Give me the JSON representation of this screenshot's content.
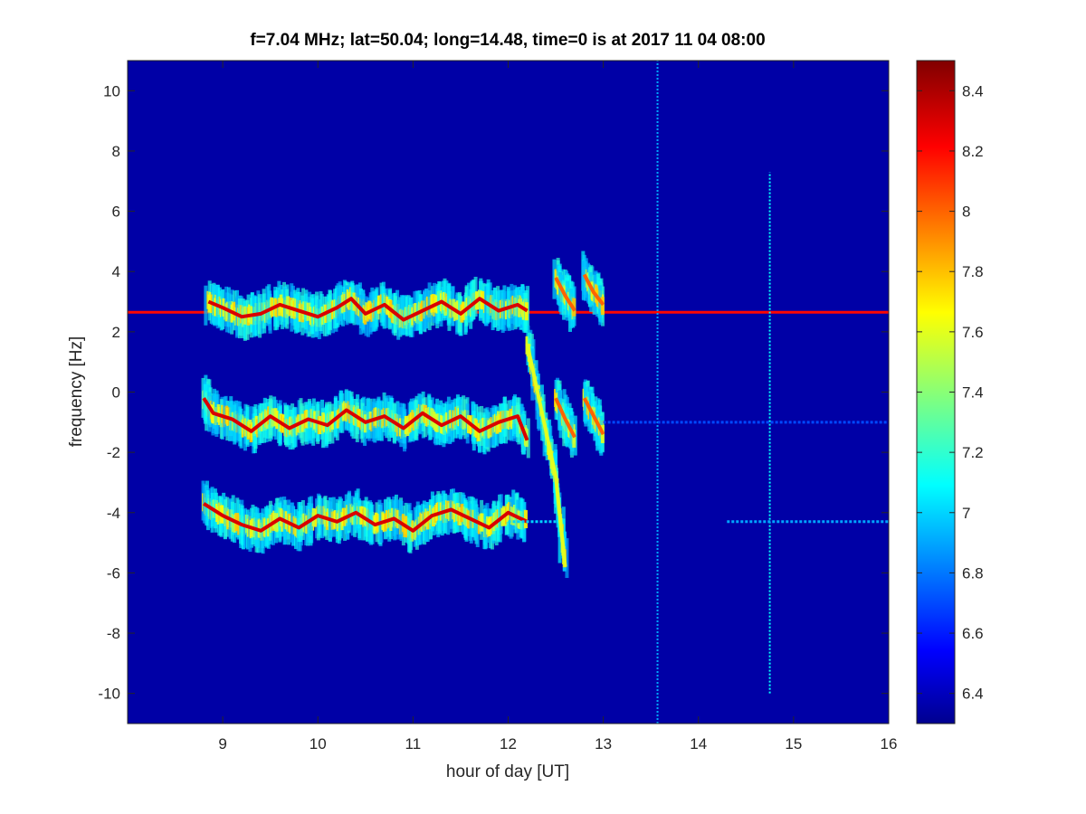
{
  "chart_data": {
    "type": "heatmap",
    "title": "f=7.04 MHz;  lat=50.04; long=14.48, time=0 is at 2017 11 04 08:00",
    "xlabel": "hour of day [UT]",
    "ylabel": "frequency [Hz]",
    "xlim": [
      8.0,
      16.0
    ],
    "ylim": [
      -11,
      11
    ],
    "x_ticks": [
      "9",
      "10",
      "11",
      "12",
      "13",
      "14",
      "15",
      "16"
    ],
    "y_ticks": [
      "10",
      "8",
      "6",
      "4",
      "2",
      "0",
      "-2",
      "-4",
      "-6",
      "-8",
      "-10"
    ],
    "colorbar": {
      "range": [
        6.3,
        8.5
      ],
      "ticks": [
        "8.4",
        "8.2",
        "8",
        "7.8",
        "7.6",
        "7.4",
        "7.2",
        "7",
        "6.8",
        "6.6",
        "6.4"
      ],
      "colormap": "jet"
    },
    "background_level": 6.35,
    "features": [
      {
        "name": "carrier",
        "kind": "horizontal",
        "x": [
          8.0,
          16.0
        ],
        "y": 2.65,
        "level": 8.2
      },
      {
        "name": "trace-upper",
        "kind": "trace",
        "x": [
          8.85,
          9.0,
          9.2,
          9.4,
          9.6,
          9.8,
          10.0,
          10.2,
          10.35,
          10.5,
          10.7,
          10.9,
          11.1,
          11.3,
          11.5,
          11.7,
          11.9,
          12.1,
          12.2
        ],
        "y": [
          3.0,
          2.8,
          2.5,
          2.6,
          2.9,
          2.7,
          2.5,
          2.8,
          3.1,
          2.6,
          2.9,
          2.4,
          2.7,
          3.0,
          2.6,
          3.1,
          2.7,
          2.9,
          2.7
        ],
        "level": 8.3
      },
      {
        "name": "trace-middle",
        "kind": "trace",
        "x": [
          8.8,
          8.9,
          9.1,
          9.3,
          9.5,
          9.7,
          9.9,
          10.1,
          10.3,
          10.5,
          10.7,
          10.9,
          11.1,
          11.3,
          11.5,
          11.7,
          11.9,
          12.1,
          12.2
        ],
        "y": [
          -0.2,
          -0.7,
          -0.9,
          -1.3,
          -0.8,
          -1.2,
          -0.9,
          -1.1,
          -0.6,
          -1.0,
          -0.8,
          -1.2,
          -0.7,
          -1.1,
          -0.8,
          -1.3,
          -1.0,
          -0.8,
          -1.6
        ],
        "level": 8.3
      },
      {
        "name": "trace-lower",
        "kind": "trace",
        "x": [
          8.8,
          9.0,
          9.2,
          9.4,
          9.6,
          9.8,
          10.0,
          10.2,
          10.4,
          10.6,
          10.8,
          11.0,
          11.2,
          11.4,
          11.6,
          11.8,
          12.0,
          12.2
        ],
        "y": [
          -3.7,
          -4.1,
          -4.4,
          -4.6,
          -4.2,
          -4.5,
          -4.1,
          -4.3,
          -4.0,
          -4.4,
          -4.2,
          -4.6,
          -4.1,
          -3.9,
          -4.2,
          -4.5,
          -4.0,
          -4.3
        ],
        "level": 8.3
      },
      {
        "name": "descending-streak-1",
        "kind": "trace",
        "x": [
          12.2,
          12.35,
          12.5,
          12.6
        ],
        "y": [
          1.6,
          -0.6,
          -2.8,
          -5.8
        ],
        "level": 7.6
      },
      {
        "name": "descending-streak-2",
        "kind": "trace",
        "x": [
          12.5,
          12.6,
          12.7
        ],
        "y": [
          3.8,
          3.2,
          2.7
        ],
        "level": 8.0
      },
      {
        "name": "descending-streak-3",
        "kind": "trace",
        "x": [
          12.8,
          12.9,
          13.0
        ],
        "y": [
          3.9,
          3.3,
          2.9
        ],
        "level": 8.0
      },
      {
        "name": "descending-streak-4",
        "kind": "trace",
        "x": [
          12.5,
          12.6,
          12.7
        ],
        "y": [
          -0.2,
          -0.9,
          -1.5
        ],
        "level": 8.0
      },
      {
        "name": "descending-streak-5",
        "kind": "trace",
        "x": [
          12.8,
          12.9,
          13.0
        ],
        "y": [
          -0.2,
          -0.8,
          -1.4
        ],
        "level": 8.0
      },
      {
        "name": "vertical-line-13.6",
        "kind": "vertical",
        "x": 13.57,
        "y": [
          -11,
          11
        ],
        "level": 6.9
      },
      {
        "name": "vertical-line-14.75",
        "kind": "vertical",
        "x": 14.75,
        "y": [
          -10,
          7.3
        ],
        "level": 7.1
      },
      {
        "name": "faint-line-minus1",
        "kind": "horizontal",
        "x": [
          13.0,
          16.0
        ],
        "y": -1.0,
        "level": 6.7
      },
      {
        "name": "faint-line-minus4",
        "kind": "horizontal",
        "x": [
          14.3,
          16.0
        ],
        "y": -4.3,
        "level": 6.9
      },
      {
        "name": "short-line-minus4",
        "kind": "horizontal",
        "x": [
          12.0,
          12.5
        ],
        "y": -4.3,
        "level": 7.0
      }
    ]
  }
}
